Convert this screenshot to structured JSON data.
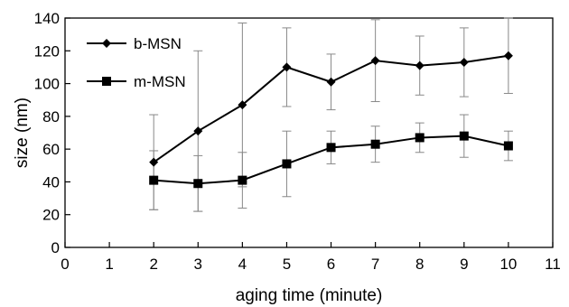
{
  "chart_data": {
    "type": "line",
    "xlabel": "aging time (minute)",
    "ylabel": "size (nm)",
    "xlim": [
      0,
      11
    ],
    "ylim": [
      0,
      140
    ],
    "xticks": [
      0,
      1,
      2,
      3,
      4,
      5,
      6,
      7,
      8,
      9,
      10,
      11
    ],
    "yticks": [
      0,
      20,
      40,
      60,
      80,
      100,
      120,
      140
    ],
    "grid": false,
    "legend_position": "top-left",
    "series": [
      {
        "name": "b-MSN",
        "marker": "diamond",
        "color": "#000000",
        "x": [
          2,
          3,
          4,
          5,
          6,
          7,
          8,
          9,
          10
        ],
        "y": [
          52,
          71,
          87,
          110,
          101,
          114,
          111,
          113,
          117
        ],
        "error": [
          29,
          49,
          50,
          24,
          17,
          25,
          18,
          21,
          23
        ]
      },
      {
        "name": "m-MSN",
        "marker": "square",
        "color": "#000000",
        "x": [
          2,
          3,
          4,
          5,
          6,
          7,
          8,
          9,
          10
        ],
        "y": [
          41,
          39,
          41,
          51,
          61,
          63,
          67,
          68,
          62
        ],
        "error": [
          18,
          17,
          17,
          20,
          10,
          11,
          9,
          13,
          9
        ]
      }
    ]
  }
}
